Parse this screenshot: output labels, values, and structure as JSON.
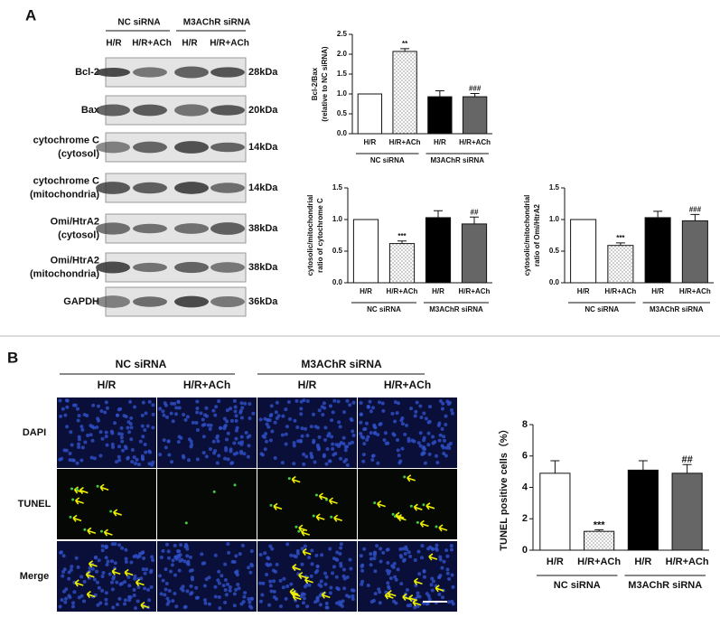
{
  "blot": {
    "panel": "A",
    "groups": [
      "NC  siRNA",
      "M3AChR  siRNA"
    ],
    "lanes": [
      "H/R",
      "H/R+ACh",
      "H/R",
      "H/R+ACh"
    ],
    "rows": [
      {
        "label": [
          "Bcl-2"
        ],
        "size": "28kDa"
      },
      {
        "label": [
          "Bax"
        ],
        "size": "20kDa"
      },
      {
        "label": [
          "cytochrome C",
          "(cytosol)"
        ],
        "size": "14kDa"
      },
      {
        "label": [
          "cytochrome C",
          "(mitochondria)"
        ],
        "size": "14kDa"
      },
      {
        "label": [
          "Omi/HtrA2",
          "(cytosol)"
        ],
        "size": "38kDa"
      },
      {
        "label": [
          "Omi/HtrA2",
          "(mitochondria)"
        ],
        "size": "38kDa"
      },
      {
        "label": [
          "GAPDH"
        ],
        "size": "36kDa"
      }
    ]
  },
  "tunel": {
    "panel": "B",
    "groups": [
      "NC siRNA",
      "M3AChR siRNA"
    ],
    "columns": [
      "H/R",
      "H/R+ACh",
      "H/R",
      "H/R+ACh"
    ],
    "rows": [
      "DAPI",
      "TUNEL",
      "Merge"
    ]
  },
  "chart_data": [
    {
      "type": "bar",
      "ylabel": [
        "Bcl-2/Bax",
        "(relative to NC siRNA)"
      ],
      "categories": [
        "H/R",
        "H/R+ACh",
        "H/R",
        "H/R+ACh"
      ],
      "values": [
        1.0,
        2.07,
        0.93,
        0.93
      ],
      "errors": [
        0,
        0.07,
        0.15,
        0.08
      ],
      "annotations": [
        null,
        "**",
        null,
        "###"
      ],
      "colors": [
        "#ffffff",
        "dots",
        "#000000",
        "#666666"
      ],
      "groups": [
        "NC siRNA",
        "M3AChR siRNA"
      ],
      "ylim": [
        0,
        2.5
      ],
      "yticks": [
        {
          "value": 0,
          "label": "0.0"
        },
        0.5,
        {
          "value": 1,
          "label": "1.0"
        },
        1.5,
        {
          "value": 2,
          "label": "2.0"
        },
        2.5
      ]
    },
    {
      "type": "bar",
      "ylabel": [
        "cytosolic/mitochondrial",
        "ratio of cytochrome C"
      ],
      "categories": [
        "H/R",
        "H/R+ACh",
        "H/R",
        "H/R+ACh"
      ],
      "values": [
        1.0,
        0.62,
        1.03,
        0.93
      ],
      "errors": [
        0,
        0.04,
        0.11,
        0.11
      ],
      "annotations": [
        null,
        "***",
        null,
        "##"
      ],
      "colors": [
        "#ffffff",
        "dots",
        "#000000",
        "#666666"
      ],
      "groups": [
        "NC siRNA",
        "M3AChR siRNA"
      ],
      "ylim": [
        0,
        1.5
      ],
      "yticks": [
        {
          "value": 0,
          "label": "0.0"
        },
        0.5,
        {
          "value": 1,
          "label": "1.0"
        },
        1.5
      ]
    },
    {
      "type": "bar",
      "ylabel": [
        "cytosolic/mitochondrial",
        "ratio of Omi/HtrA2"
      ],
      "categories": [
        "H/R",
        "H/R+ACh",
        "H/R",
        "H/R+ACh"
      ],
      "values": [
        1.0,
        0.59,
        1.03,
        0.98
      ],
      "errors": [
        0,
        0.04,
        0.1,
        0.1
      ],
      "annotations": [
        null,
        "***",
        null,
        "###"
      ],
      "colors": [
        "#ffffff",
        "dots",
        "#000000",
        "#666666"
      ],
      "groups": [
        "NC siRNA",
        "M3AChR siRNA"
      ],
      "ylim": [
        0,
        1.5
      ],
      "yticks": [
        {
          "value": 0,
          "label": "0.0"
        },
        0.5,
        {
          "value": 1,
          "label": "1.0"
        },
        1.5
      ]
    },
    {
      "type": "bar",
      "ylabel": [
        "TUNEL positive cells（%）"
      ],
      "categories": [
        "H/R",
        "H/R+ACh",
        "H/R",
        "H/R+ACh"
      ],
      "values": [
        4.9,
        1.2,
        5.1,
        4.9
      ],
      "errors": [
        0.8,
        0.1,
        0.6,
        0.55
      ],
      "annotations": [
        null,
        "***",
        null,
        "##"
      ],
      "colors": [
        "#ffffff",
        "dots",
        "#000000",
        "#666666"
      ],
      "groups": [
        "NC siRNA",
        "M3AChR siRNA"
      ],
      "ylim": [
        0,
        8
      ],
      "yticks": [
        0,
        2,
        4,
        6,
        8
      ]
    }
  ]
}
